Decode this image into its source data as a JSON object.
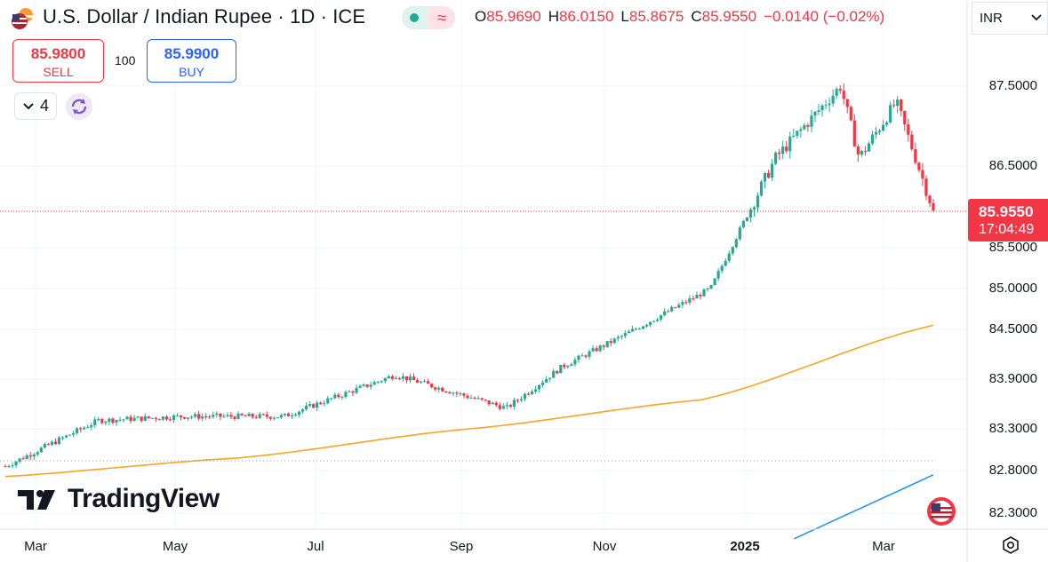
{
  "header": {
    "title": "U.S. Dollar / Indian Rupee · 1D · ICE",
    "ohlc": [
      {
        "key": "O",
        "value": "85.9690"
      },
      {
        "key": "H",
        "value": "86.0150"
      },
      {
        "key": "L",
        "value": "85.8675"
      },
      {
        "key": "C",
        "value": "85.9550"
      }
    ],
    "change": "−0.0140 (−0.02%)",
    "pill_icon_right": "≈"
  },
  "trade": {
    "sell_price": "85.9800",
    "sell_label": "SELL",
    "buy_price": "85.9900",
    "buy_label": "BUY",
    "quantity": "100"
  },
  "toolbar": {
    "collapse_count": "4"
  },
  "currency_selector": {
    "value": "INR"
  },
  "price_tag": {
    "price": "85.9550",
    "countdown": "17:04:49"
  },
  "branding": {
    "logo_text": "TradingView"
  },
  "colors": {
    "up": "#22ab94",
    "down": "#f23645",
    "ma_long": "#f5a623",
    "ma_extra": "#2196f3"
  },
  "chart_data": {
    "type": "candlestick",
    "title": "U.S. Dollar / Indian Rupee · 1D · ICE",
    "y_ticks": [
      "87.5000",
      "86.5000",
      "85.5000",
      "85.0000",
      "84.5000",
      "83.9000",
      "83.3000",
      "82.8000",
      "82.3000"
    ],
    "y_tick_values": [
      87.5,
      86.5,
      85.5,
      85.0,
      84.5,
      83.9,
      83.3,
      82.8,
      82.3
    ],
    "x_ticks": [
      "Mar",
      "May",
      "Jul",
      "Sep",
      "Nov",
      "2025",
      "Mar"
    ],
    "last_price": 85.955,
    "close_series_key_points": [
      {
        "date": "Mar 2024",
        "close": 82.85
      },
      {
        "date": "Apr 2024",
        "close": 83.4
      },
      {
        "date": "May 2024",
        "close": 83.45
      },
      {
        "date": "Jun 2024",
        "close": 83.45
      },
      {
        "date": "Aug 2024",
        "close": 83.95
      },
      {
        "date": "Sep 2024",
        "close": 83.55
      },
      {
        "date": "Oct 2024",
        "close": 84.05
      },
      {
        "date": "Nov 2024",
        "close": 84.45
      },
      {
        "date": "Dec 2024",
        "close": 85.0
      },
      {
        "date": "Jan 2025",
        "close": 86.6
      },
      {
        "date": "Feb 2025",
        "close": 87.5
      },
      {
        "date": "Feb 2025 (dip)",
        "close": 86.6
      },
      {
        "date": "Mar 2025",
        "close": 87.3
      },
      {
        "date": "Mar 2025 (last)",
        "close": 85.955
      }
    ],
    "moving_average_orange": [
      [
        0,
        82.73
      ],
      [
        0.25,
        82.95
      ],
      [
        0.5,
        83.3
      ],
      [
        0.75,
        83.65
      ],
      [
        1,
        84.55
      ]
    ],
    "moving_average_blue": [
      [
        0.85,
        82.0
      ],
      [
        1,
        82.75
      ]
    ]
  }
}
